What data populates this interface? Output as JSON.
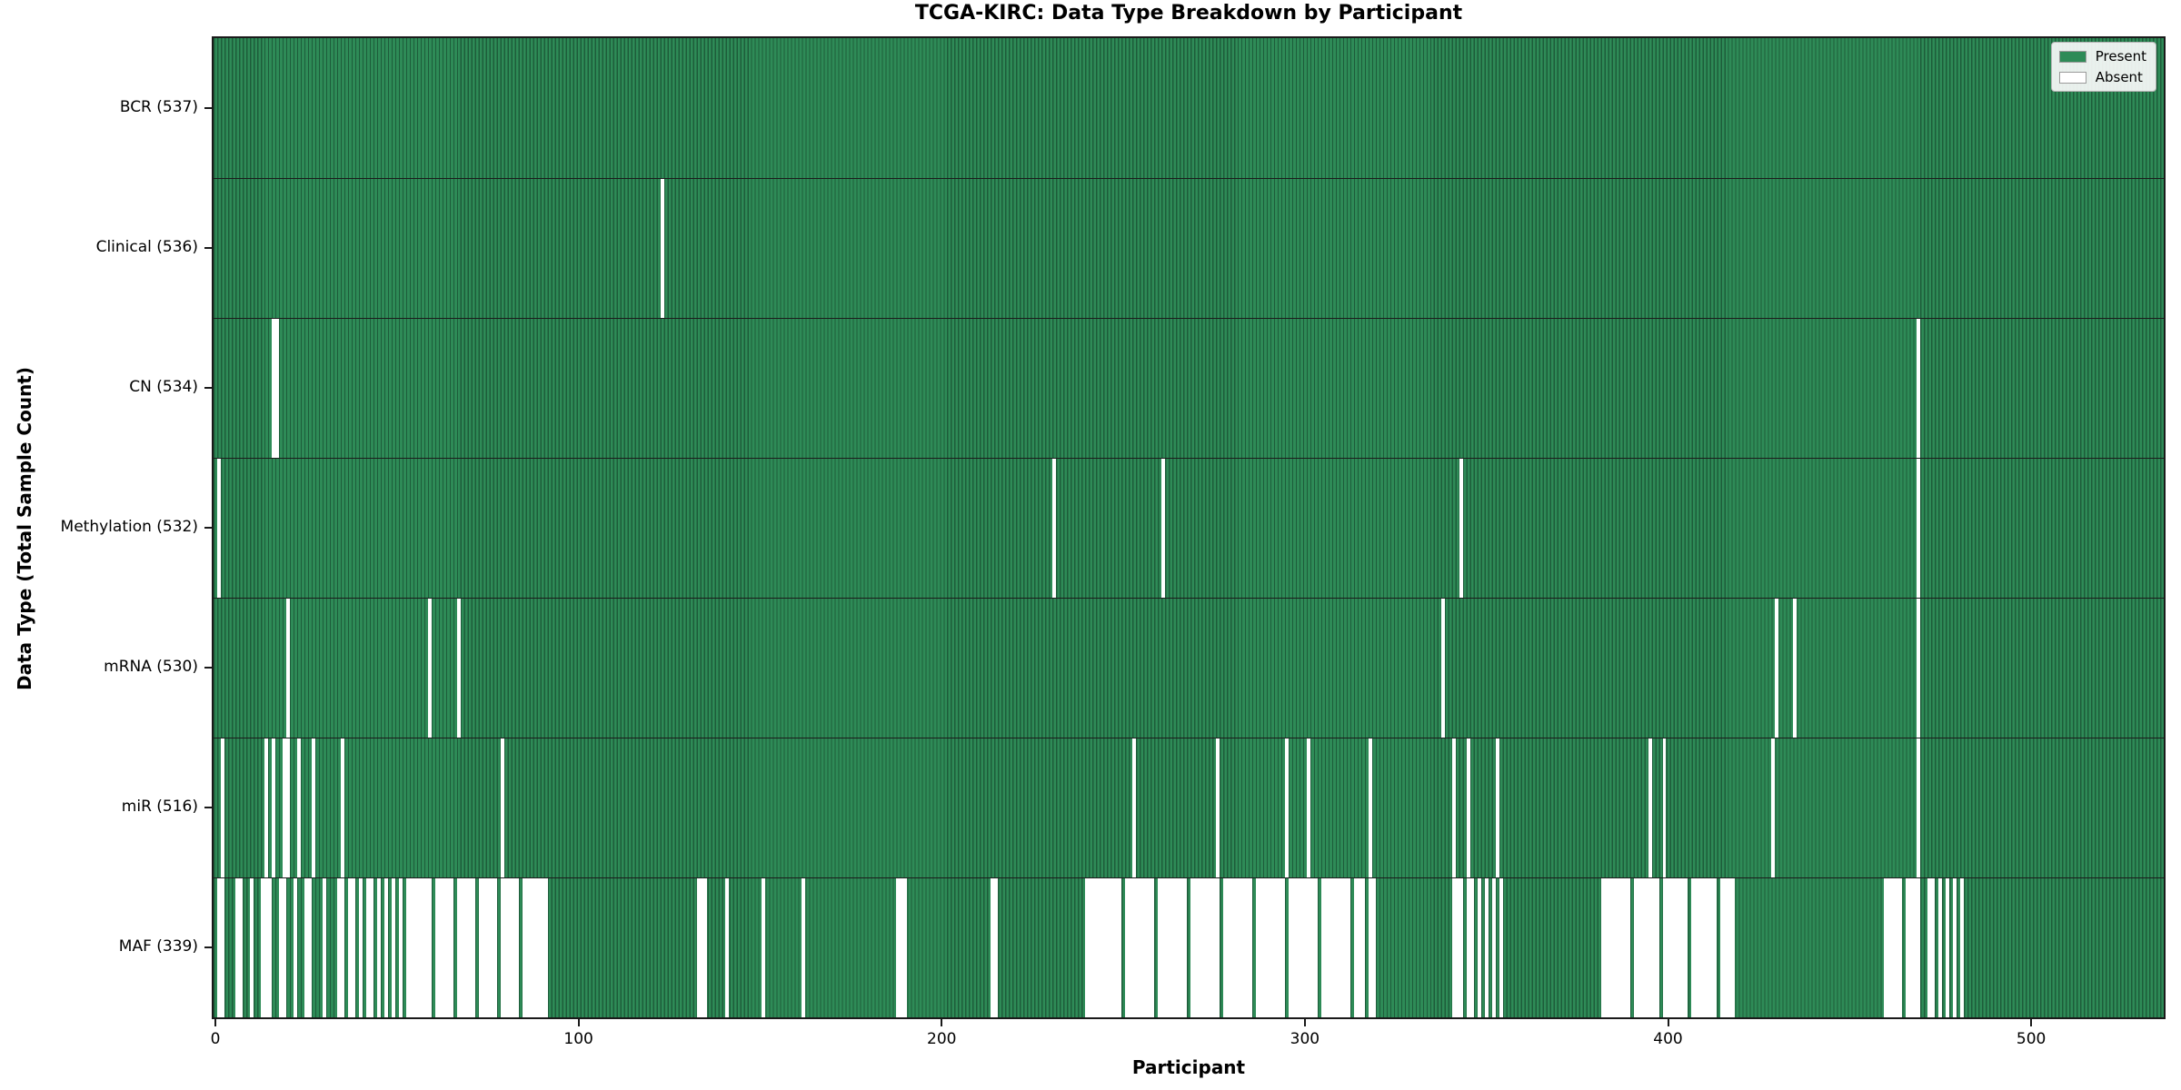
{
  "chart_data": {
    "type": "heatmap",
    "title": "TCGA-KIRC: Data Type Breakdown by Participant",
    "xlabel": "Participant",
    "ylabel": "Data Type (Total Sample Count)",
    "n_participants": 537,
    "x_ticks": [
      0,
      100,
      200,
      300,
      400,
      500
    ],
    "xlim": [
      -0.5,
      536.5
    ],
    "grid": false,
    "legend_position": "upper right",
    "legend": [
      {
        "label": "Present",
        "color": "#2e8b57"
      },
      {
        "label": "Absent",
        "color": "#ffffff"
      }
    ],
    "colors": {
      "present": "#2e8b57",
      "present_stripe": "#1d5c3a",
      "absent": "#ffffff",
      "separator": "#1c1c1c"
    },
    "rows": [
      {
        "name": "BCR",
        "count": 537,
        "label": "BCR (537)",
        "absent": []
      },
      {
        "name": "Clinical",
        "count": 536,
        "label": "Clinical (536)",
        "absent": [
          123
        ]
      },
      {
        "name": "CN",
        "count": 534,
        "label": "CN (534)",
        "absent": [
          16,
          17,
          469
        ]
      },
      {
        "name": "Methylation",
        "count": 532,
        "label": "Methylation (532)",
        "absent": [
          1,
          231,
          261,
          343,
          469
        ]
      },
      {
        "name": "mRNA",
        "count": 530,
        "label": "mRNA (530)",
        "absent": [
          20,
          59,
          67,
          338,
          430,
          435,
          469
        ]
      },
      {
        "name": "miR",
        "count": 516,
        "label": "miR (516)",
        "absent": [
          2,
          14,
          16,
          19,
          20,
          23,
          27,
          35,
          79,
          253,
          276,
          295,
          301,
          318,
          341,
          345,
          353,
          395,
          399,
          429,
          469
        ]
      },
      {
        "name": "MAF",
        "count": 339,
        "label": "MAF (339)",
        "absent": [
          1,
          2,
          6,
          7,
          10,
          13,
          14,
          15,
          18,
          19,
          22,
          25,
          26,
          30,
          34,
          35,
          37,
          38,
          40,
          42,
          43,
          45,
          47,
          49,
          51,
          53,
          54,
          55,
          56,
          57,
          58,
          59,
          61,
          62,
          63,
          64,
          65,
          67,
          68,
          69,
          70,
          71,
          73,
          74,
          75,
          76,
          77,
          79,
          80,
          81,
          82,
          83,
          85,
          86,
          87,
          88,
          89,
          90,
          91,
          133,
          134,
          135,
          141,
          151,
          162,
          188,
          189,
          190,
          214,
          215,
          240,
          241,
          242,
          243,
          244,
          245,
          246,
          247,
          248,
          249,
          251,
          252,
          253,
          254,
          255,
          256,
          257,
          258,
          260,
          261,
          262,
          263,
          264,
          265,
          266,
          267,
          269,
          270,
          271,
          272,
          273,
          274,
          275,
          276,
          278,
          279,
          280,
          281,
          282,
          283,
          284,
          285,
          287,
          288,
          289,
          290,
          291,
          292,
          293,
          294,
          296,
          297,
          298,
          299,
          300,
          301,
          302,
          303,
          305,
          306,
          307,
          308,
          309,
          310,
          311,
          312,
          314,
          315,
          316,
          318,
          319,
          341,
          342,
          343,
          345,
          346,
          348,
          350,
          352,
          354,
          382,
          383,
          384,
          385,
          386,
          387,
          388,
          389,
          391,
          392,
          393,
          394,
          395,
          396,
          397,
          399,
          400,
          401,
          402,
          403,
          404,
          405,
          407,
          408,
          409,
          410,
          411,
          412,
          413,
          415,
          416,
          417,
          418,
          460,
          461,
          462,
          463,
          464,
          466,
          467,
          468,
          469,
          472,
          473,
          475,
          477,
          479,
          481
        ]
      }
    ]
  }
}
